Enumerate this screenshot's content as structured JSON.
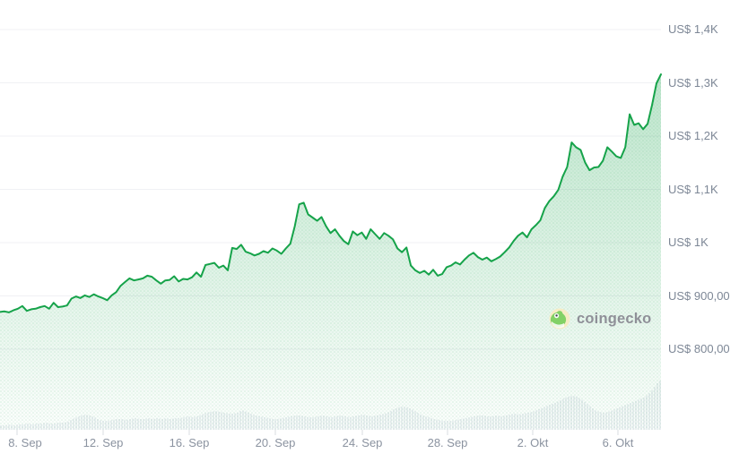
{
  "watermark": {
    "text": "coingecko"
  },
  "colors": {
    "line": "#16a34a",
    "area_fill": "#16a34a",
    "gridline": "#f0f1f4",
    "y_label": "#7d8796",
    "x_label": "#8b93a0",
    "volume_bar": "#eceff3",
    "axis_tick": "#d8dce1",
    "watermark_text": "#8b8b94",
    "gecko_body": "#7ed05f",
    "gecko_circle": "#f7ecc3"
  },
  "chart_data": {
    "type": "line",
    "title": "",
    "currency_prefix": "US$",
    "locale": "de",
    "legend": "none",
    "grid": "horizontal",
    "y_axis": {
      "tick_labels": [
        "US$ 1,4K",
        "US$ 1,3K",
        "US$ 1,2K",
        "US$ 1,1K",
        "US$ 1K",
        "US$ 900,00",
        "US$ 800,00"
      ],
      "tick_values": [
        1400,
        1300,
        1200,
        1100,
        1000,
        900,
        800
      ],
      "range": [
        800,
        1400
      ],
      "side": "right"
    },
    "x_axis": {
      "tick_labels": [
        "8. Sep",
        "12. Sep",
        "16. Sep",
        "20. Sep",
        "24. Sep",
        "28. Sep",
        "2. Okt",
        "6. Okt"
      ],
      "span_days": 30
    },
    "series": [
      {
        "name": "price",
        "unit": "US$",
        "values": [
          870,
          871,
          869,
          873,
          876,
          881,
          872,
          875,
          876,
          879,
          881,
          876,
          887,
          879,
          880,
          882,
          895,
          899,
          896,
          901,
          898,
          903,
          899,
          896,
          892,
          901,
          907,
          919,
          926,
          933,
          929,
          931,
          933,
          938,
          936,
          929,
          923,
          929,
          930,
          937,
          927,
          932,
          931,
          935,
          944,
          936,
          958,
          960,
          962,
          953,
          957,
          948,
          990,
          988,
          996,
          983,
          980,
          976,
          979,
          984,
          981,
          989,
          985,
          979,
          989,
          998,
          1031,
          1072,
          1075,
          1053,
          1047,
          1041,
          1048,
          1031,
          1018,
          1025,
          1013,
          1003,
          997,
          1021,
          1014,
          1019,
          1007,
          1025,
          1016,
          1007,
          1018,
          1013,
          1006,
          989,
          982,
          991,
          957,
          948,
          943,
          947,
          940,
          949,
          938,
          941,
          954,
          957,
          963,
          959,
          968,
          976,
          981,
          973,
          968,
          972,
          965,
          969,
          974,
          982,
          991,
          1003,
          1013,
          1019,
          1010,
          1025,
          1033,
          1042,
          1065,
          1078,
          1087,
          1099,
          1124,
          1142,
          1188,
          1179,
          1174,
          1151,
          1136,
          1141,
          1142,
          1154,
          1179,
          1171,
          1162,
          1159,
          1179,
          1241,
          1221,
          1224,
          1213,
          1223,
          1258,
          1299,
          1316
        ]
      },
      {
        "name": "volume",
        "unit": "relative_px",
        "values": [
          5,
          5,
          6,
          5,
          6,
          6,
          7,
          6,
          7,
          7,
          8,
          7,
          7,
          8,
          8,
          9,
          12,
          14,
          16,
          17,
          16,
          14,
          11,
          10,
          10,
          11,
          12,
          12,
          11,
          12,
          13,
          12,
          12,
          13,
          12,
          13,
          12,
          13,
          12,
          13,
          13,
          14,
          15,
          14,
          15,
          17,
          19,
          20,
          21,
          20,
          19,
          18,
          18,
          19,
          22,
          20,
          18,
          16,
          15,
          14,
          13,
          12,
          12,
          13,
          14,
          15,
          16,
          16,
          15,
          14,
          14,
          15,
          16,
          15,
          14,
          15,
          16,
          15,
          14,
          15,
          16,
          17,
          16,
          15,
          16,
          17,
          18,
          20,
          23,
          25,
          26,
          25,
          23,
          20,
          17,
          15,
          14,
          12,
          11,
          10,
          10,
          10,
          11,
          12,
          13,
          14,
          15,
          16,
          16,
          15,
          15,
          16,
          15,
          16,
          17,
          18,
          17,
          18,
          19,
          20,
          22,
          24,
          26,
          28,
          30,
          32,
          35,
          37,
          38,
          37,
          34,
          30,
          26,
          22,
          20,
          19,
          20,
          22,
          24,
          26,
          28,
          30,
          32,
          34,
          36,
          40,
          45,
          52,
          57
        ]
      }
    ]
  }
}
